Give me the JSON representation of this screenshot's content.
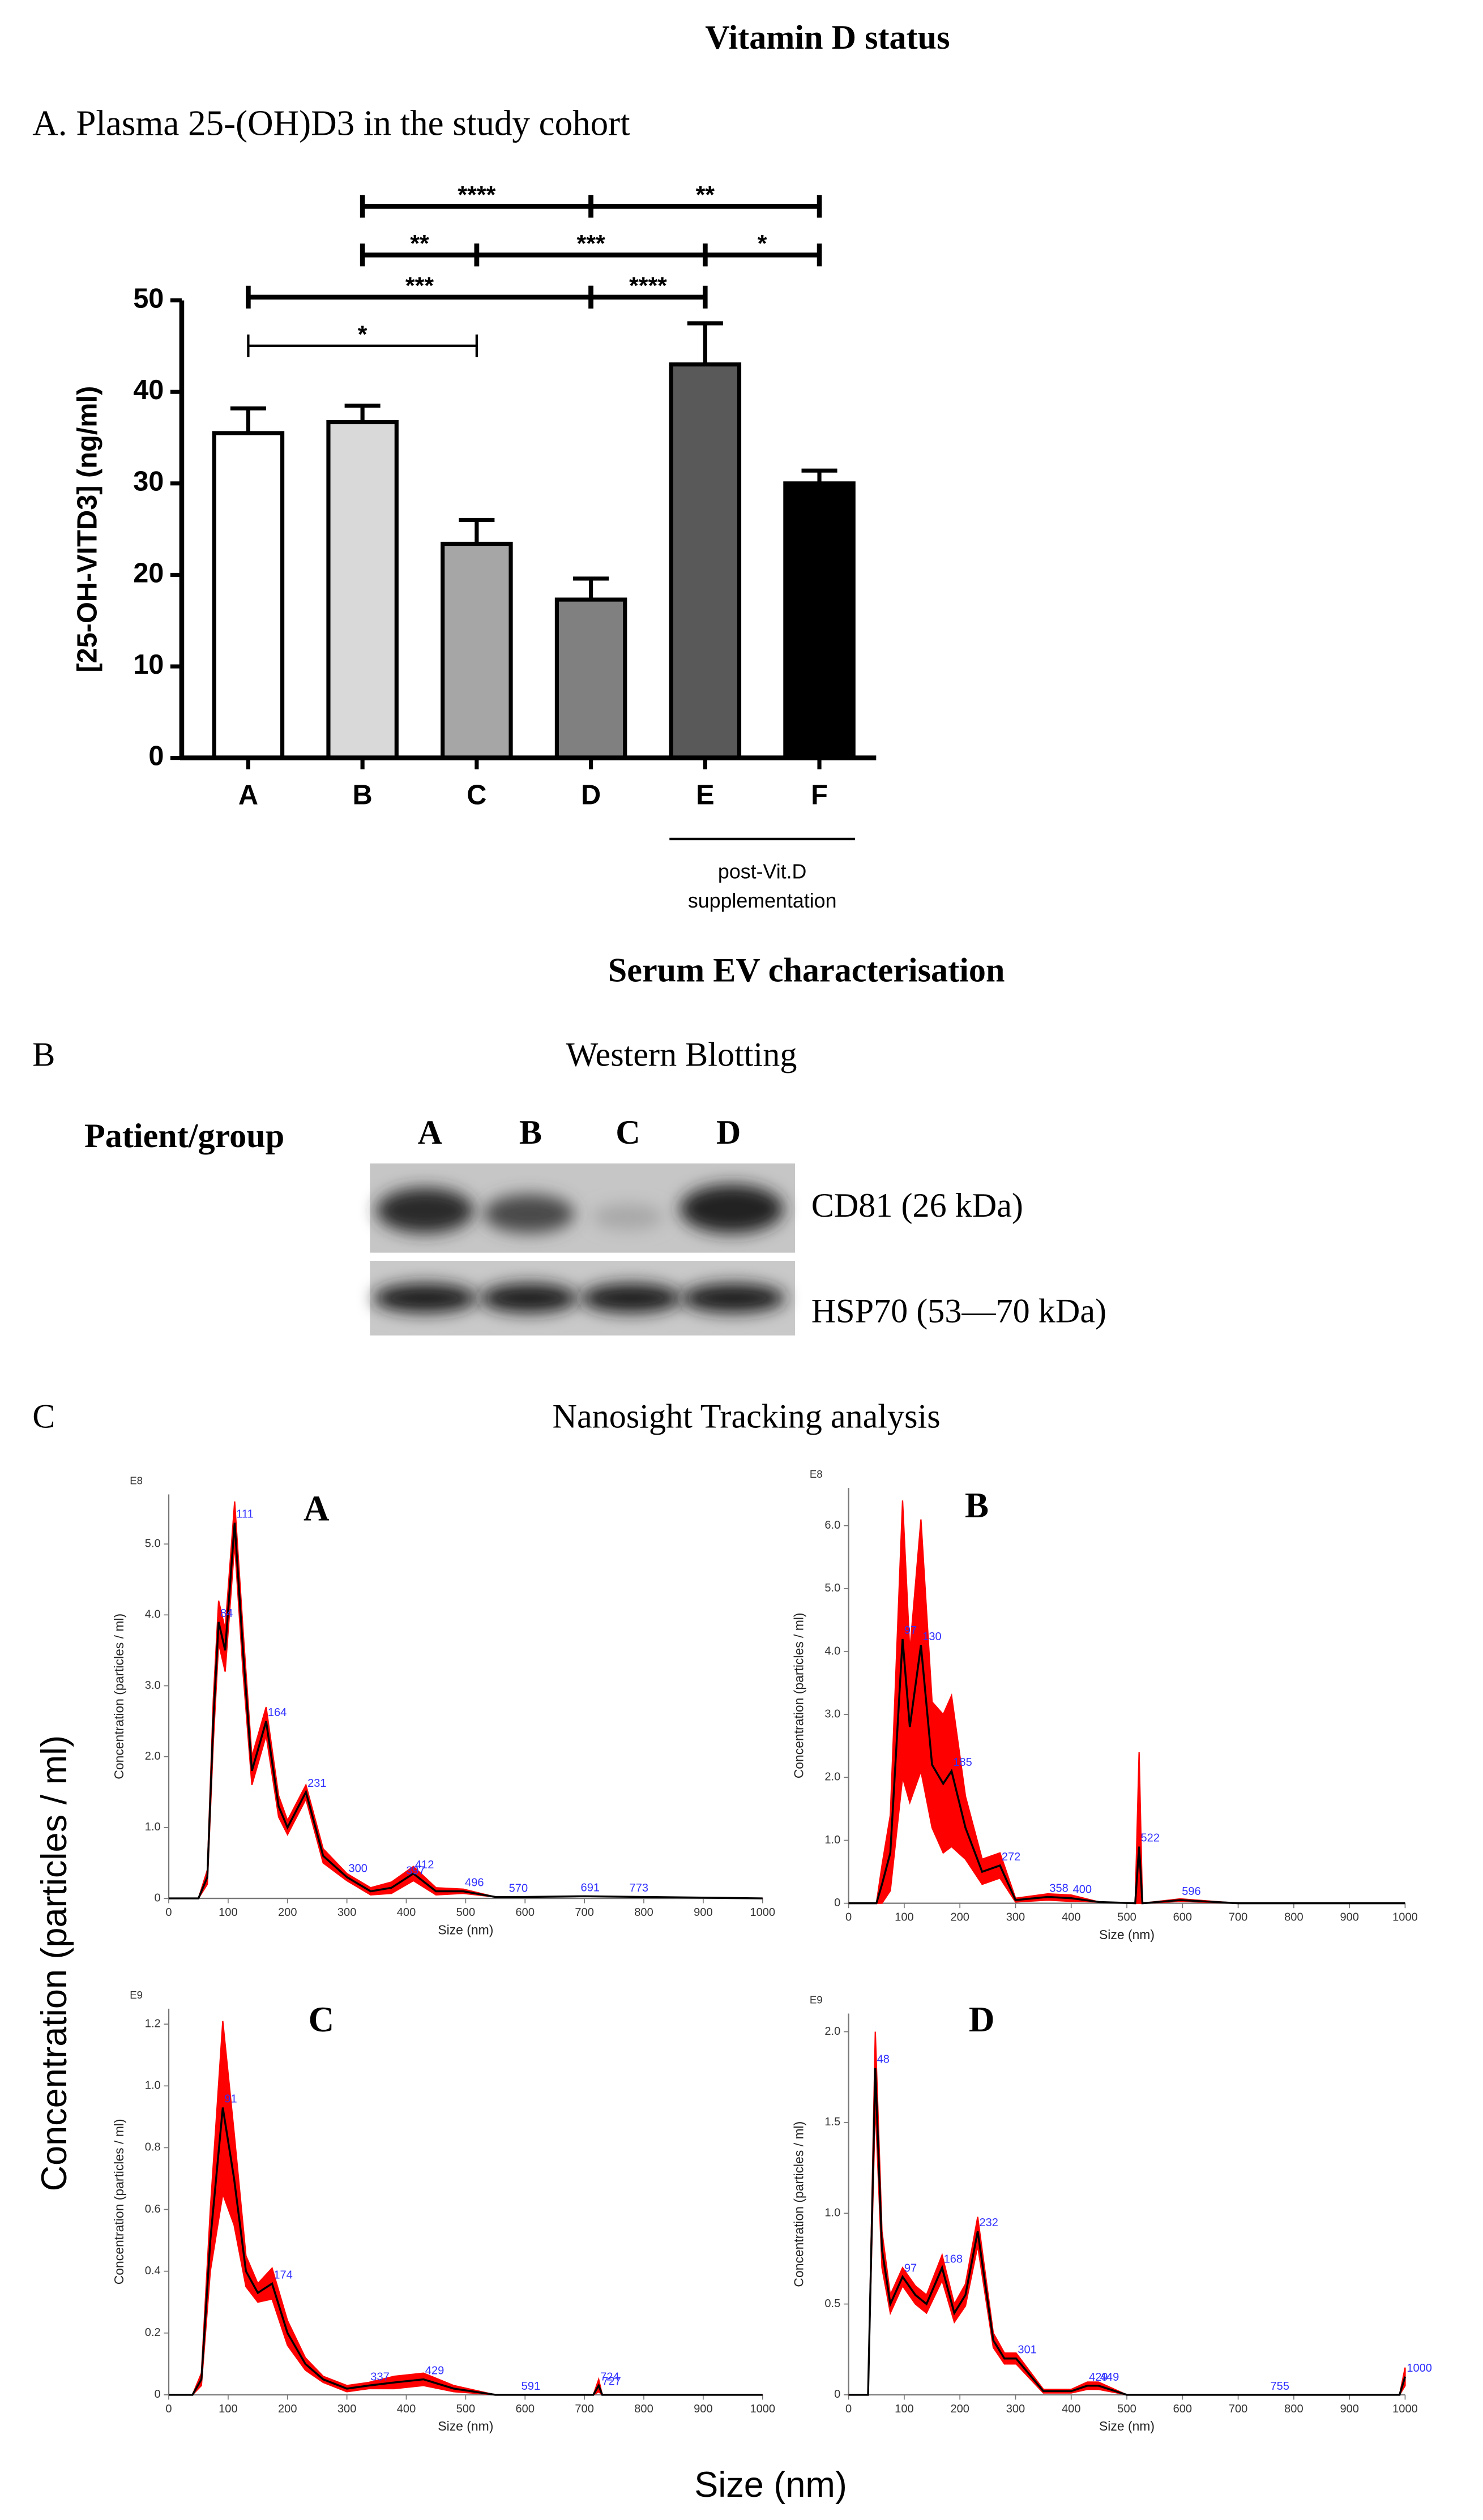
{
  "title": "Vitamin D status",
  "section_title": "Serum EV characterisation",
  "western_blot": {
    "label": "B",
    "title": "Western Blotting",
    "row_header": "Patient/group",
    "lanes": [
      "A",
      "B",
      "C",
      "D"
    ],
    "bands": [
      "CD81 (26 kDa)",
      "HSP70 (53—70 kDa)"
    ]
  },
  "nta": {
    "label": "C",
    "title": "Nanosight Tracking analysis",
    "ylabel": "Concentration (particles / ml)",
    "xlabel": "Size (nm)"
  },
  "chart_data": [
    {
      "type": "bar",
      "title": "A. Plasma 25-(OH)D3 in the study cohort",
      "ylabel": "[25-OH-VITD3] (ng/ml)",
      "categories": [
        "A",
        "B",
        "C",
        "D",
        "E",
        "F"
      ],
      "values": [
        35.5,
        36.7,
        23.4,
        17.3,
        43,
        30
      ],
      "errors": [
        2.7,
        1.8,
        2.6,
        2.3,
        4.5,
        1.4
      ],
      "colors": [
        "#ffffff",
        "#d9d9d9",
        "#a6a6a6",
        "#808080",
        "#595959",
        "#000000"
      ],
      "ylim": [
        0,
        50
      ],
      "yticks": [
        0,
        10,
        20,
        30,
        40,
        50
      ],
      "significance": [
        [
          {
            "from": "A",
            "to": "C",
            "label": "*"
          }
        ],
        [
          {
            "from": "A",
            "to": "D",
            "label": "***"
          },
          {
            "from": "D",
            "to": "E",
            "label": "****"
          }
        ],
        [
          {
            "from": "B",
            "to": "C",
            "label": "**"
          },
          {
            "from": "C",
            "to": "E",
            "label": "***"
          },
          {
            "from": "E",
            "to": "F",
            "label": "*"
          }
        ],
        [
          {
            "from": "B",
            "to": "D",
            "label": "****"
          },
          {
            "from": "D",
            "to": "F",
            "label": "**"
          }
        ]
      ],
      "annotation": {
        "categories": [
          "E",
          "F"
        ],
        "lines": [
          "post-Vit.D",
          "supplementation"
        ]
      }
    },
    {
      "type": "line",
      "title": "A",
      "multiplier": "E8",
      "xlabel": "Size (nm)",
      "ylabel": "Concentration (particles / ml)",
      "x": [
        0,
        50,
        65,
        75,
        84,
        95,
        111,
        125,
        140,
        164,
        185,
        200,
        231,
        260,
        300,
        340,
        375,
        412,
        450,
        496,
        550,
        600,
        700,
        800,
        1000
      ],
      "series": [
        {
          "color": "#000000",
          "error_color": "#ff0000",
          "values": [
            0,
            0,
            0.3,
            2.5,
            3.9,
            3.5,
            5.3,
            3.5,
            1.8,
            2.5,
            1.3,
            1.0,
            1.5,
            0.6,
            0.3,
            0.1,
            0.15,
            0.35,
            0.1,
            0.1,
            0.02,
            0.02,
            0.03,
            0.02,
            0
          ],
          "errors": [
            0,
            0,
            0.1,
            0.3,
            0.3,
            0.3,
            0.3,
            0.3,
            0.2,
            0.2,
            0.15,
            0.1,
            0.1,
            0.1,
            0.05,
            0.05,
            0.08,
            0.1,
            0.05,
            0.03,
            0,
            0,
            0,
            0,
            0
          ]
        }
      ],
      "peak_labels": [
        84,
        111,
        164,
        231,
        300,
        397,
        412,
        496,
        570,
        691,
        773
      ],
      "xlim": [
        0,
        1000
      ],
      "xticks": [
        0,
        100,
        200,
        300,
        400,
        500,
        600,
        700,
        800,
        900,
        1000
      ],
      "ylim": [
        0,
        5.7
      ],
      "yticks": [
        0,
        {
          "value": 1,
          "label": "1.0"
        },
        {
          "value": 2,
          "label": "2.0"
        },
        {
          "value": 3,
          "label": "3.0"
        },
        {
          "value": 4,
          "label": "4.0"
        },
        {
          "value": 5,
          "label": "5.0"
        }
      ]
    },
    {
      "type": "line",
      "title": "B",
      "multiplier": "E8",
      "xlabel": "Size (nm)",
      "ylabel": "Concentration (particles / ml)",
      "x": [
        0,
        50,
        60,
        75,
        97,
        110,
        130,
        150,
        170,
        185,
        210,
        240,
        272,
        300,
        358,
        400,
        450,
        515,
        522,
        528,
        596,
        700,
        1000
      ],
      "series": [
        {
          "color": "#000000",
          "error_color": "#ff0000",
          "values": [
            0,
            0,
            0.3,
            0.8,
            4.2,
            2.8,
            4.1,
            2.2,
            1.9,
            2.1,
            1.2,
            0.5,
            0.6,
            0.05,
            0.1,
            0.08,
            0.02,
            0,
            0.9,
            0,
            0.05,
            0,
            0
          ],
          "errors": [
            0,
            0,
            0.3,
            0.6,
            2.2,
            1.2,
            2.0,
            1.0,
            1.1,
            1.2,
            0.5,
            0.2,
            0.2,
            0.03,
            0.05,
            0.05,
            0,
            0,
            1.5,
            0,
            0.02,
            0,
            0
          ]
        }
      ],
      "peak_labels": [
        97,
        130,
        185,
        272,
        358,
        400,
        522,
        596
      ],
      "xlim": [
        0,
        1000
      ],
      "xticks": [
        0,
        100,
        200,
        300,
        400,
        500,
        600,
        700,
        800,
        900,
        1000
      ],
      "ylim": [
        0,
        6.6
      ],
      "yticks": [
        0,
        {
          "value": 1,
          "label": "1.0"
        },
        {
          "value": 2,
          "label": "2.0"
        },
        {
          "value": 3,
          "label": "3.0"
        },
        {
          "value": 4,
          "label": "4.0"
        },
        {
          "value": 5,
          "label": "5.0"
        },
        {
          "value": 6,
          "label": "6.0"
        }
      ]
    },
    {
      "type": "line",
      "title": "C",
      "multiplier": "E9",
      "xlabel": "Size (nm)",
      "ylabel": "Concentration (particles / ml)",
      "x": [
        0,
        40,
        55,
        70,
        91,
        110,
        130,
        150,
        174,
        200,
        230,
        260,
        300,
        337,
        380,
        429,
        480,
        550,
        591,
        700,
        715,
        724,
        730,
        800,
        1000
      ],
      "series": [
        {
          "color": "#000000",
          "error_color": "#ff0000",
          "values": [
            0,
            0,
            0.05,
            0.5,
            0.93,
            0.7,
            0.4,
            0.33,
            0.36,
            0.2,
            0.1,
            0.05,
            0.02,
            0.03,
            0.04,
            0.05,
            0.02,
            0,
            0,
            0,
            0,
            0.03,
            0,
            0,
            0
          ],
          "errors": [
            0,
            0,
            0.02,
            0.1,
            0.28,
            0.15,
            0.05,
            0.03,
            0.05,
            0.04,
            0.02,
            0.01,
            0.01,
            0.01,
            0.02,
            0.02,
            0.01,
            0,
            0,
            0,
            0,
            0.02,
            0,
            0,
            0
          ]
        }
      ],
      "peak_labels": [
        91,
        174,
        337,
        429,
        591,
        724,
        727
      ],
      "xlim": [
        0,
        1000
      ],
      "xticks": [
        0,
        100,
        200,
        300,
        400,
        500,
        600,
        700,
        800,
        900,
        1000
      ],
      "ylim": [
        0,
        1.25
      ],
      "yticks": [
        0,
        0.2,
        0.4,
        0.6,
        0.8,
        {
          "value": 1,
          "label": "1.0"
        },
        1.2
      ]
    },
    {
      "type": "line",
      "title": "D",
      "multiplier": "E9",
      "xlabel": "Size (nm)",
      "ylabel": "Concentration (particles / ml)",
      "x": [
        0,
        35,
        48,
        60,
        75,
        97,
        120,
        140,
        168,
        190,
        210,
        232,
        260,
        280,
        301,
        350,
        400,
        429,
        449,
        500,
        700,
        755,
        990,
        1000
      ],
      "series": [
        {
          "color": "#000000",
          "error_color": "#ff0000",
          "values": [
            0,
            0,
            1.8,
            0.8,
            0.5,
            0.65,
            0.55,
            0.5,
            0.7,
            0.45,
            0.55,
            0.9,
            0.3,
            0.2,
            0.2,
            0.02,
            0.02,
            0.05,
            0.05,
            0,
            0,
            0,
            0,
            0.1
          ],
          "errors": [
            0,
            0,
            0.2,
            0.1,
            0.05,
            0.05,
            0.05,
            0.05,
            0.07,
            0.05,
            0.06,
            0.08,
            0.04,
            0.03,
            0.03,
            0.01,
            0.01,
            0.02,
            0.02,
            0,
            0,
            0,
            0,
            0.05
          ]
        }
      ],
      "peak_labels": [
        48,
        97,
        168,
        232,
        301,
        429,
        449,
        755,
        1000
      ],
      "xlim": [
        0,
        1000
      ],
      "xticks": [
        0,
        100,
        200,
        300,
        400,
        500,
        600,
        700,
        800,
        900,
        1000
      ],
      "ylim": [
        0,
        2.1
      ],
      "yticks": [
        0,
        0.5,
        {
          "value": 1,
          "label": "1.0"
        },
        1.5,
        {
          "value": 2,
          "label": "2.0"
        }
      ]
    }
  ]
}
